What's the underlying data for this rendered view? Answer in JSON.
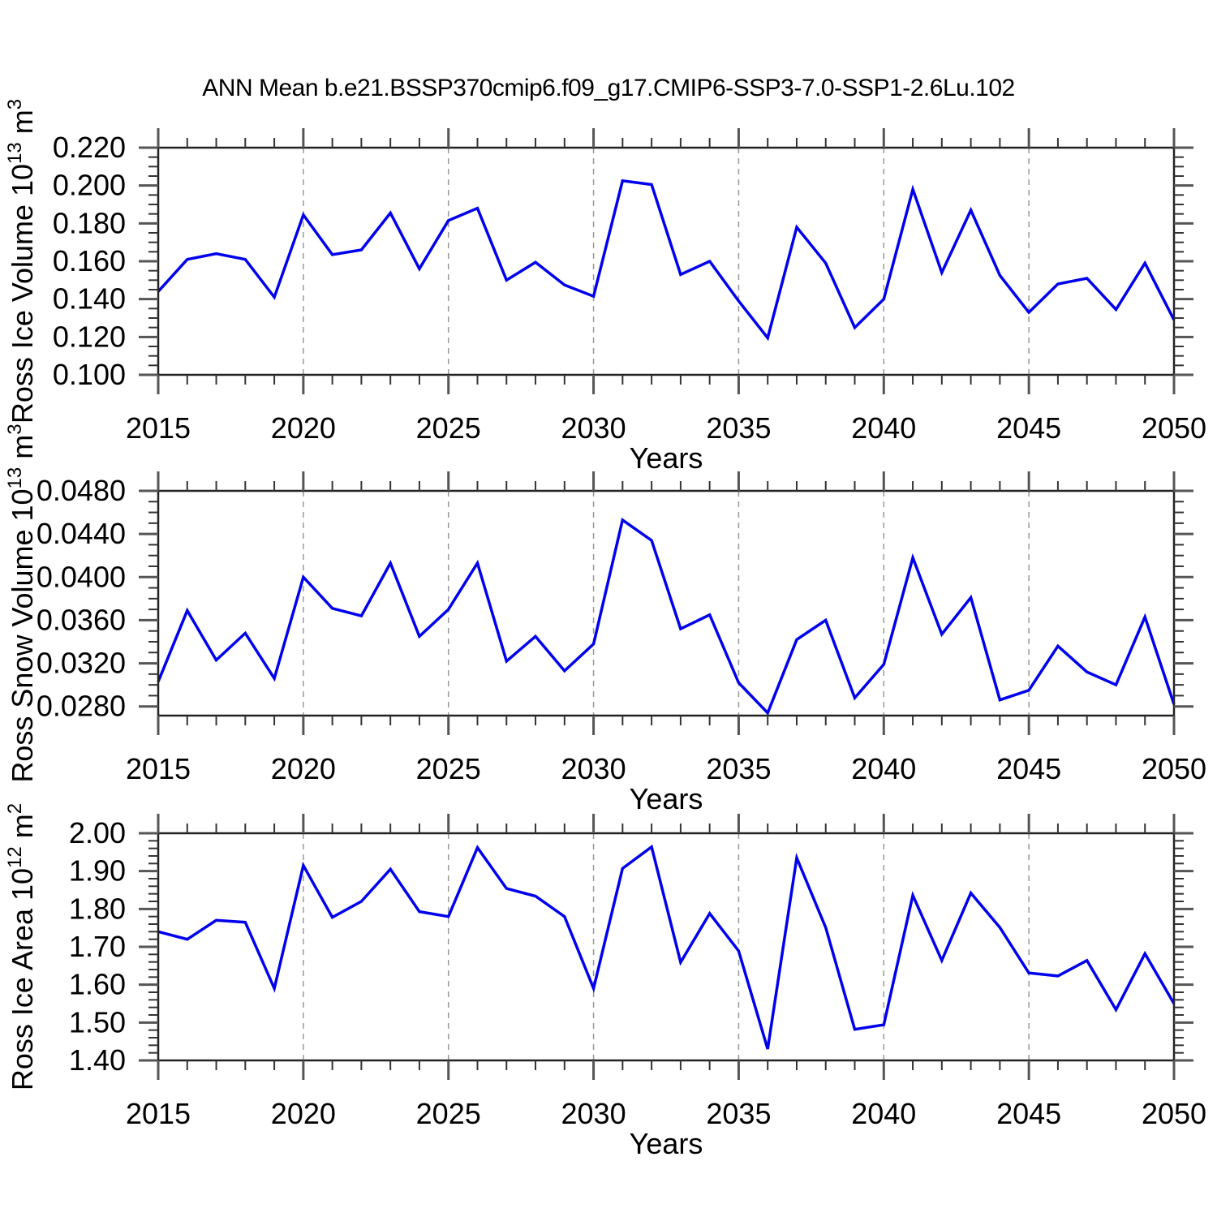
{
  "title": "ANN Mean b.e21.BSSP370cmip6.f09_g17.CMIP6-SSP3-7.0-SSP1-2.6Lu.102",
  "colors": {
    "line": "#0000EE",
    "grid": "#999999",
    "axis": "#222222",
    "major_tick": "#555555",
    "minor_tick": "#333333"
  },
  "chart_data": [
    {
      "type": "line",
      "name": "ross-ice-volume",
      "ylabel": {
        "main": "Ross Ice Volume 10",
        "exp": "13",
        "unit": " m",
        "unit_exp": "3"
      },
      "xlabel": "Years",
      "x_start": 2015,
      "x_end": 2050,
      "x_major_step": 5,
      "xtick_labels": [
        "2015",
        "2020",
        "2025",
        "2030",
        "2035",
        "2040",
        "2045",
        "2050"
      ],
      "grid_years": [
        2020,
        2025,
        2030,
        2035,
        2040,
        2045
      ],
      "ylim": [
        0.1,
        0.22
      ],
      "ymajor": [
        0.1,
        0.12,
        0.14,
        0.16,
        0.18,
        0.2,
        0.22
      ],
      "ytick_labels": [
        "0.100",
        "0.120",
        "0.140",
        "0.160",
        "0.180",
        "0.200",
        "0.220"
      ],
      "yminor_step": 0.005,
      "values": [
        0.144,
        0.161,
        0.164,
        0.161,
        0.141,
        0.1845,
        0.1635,
        0.166,
        0.1855,
        0.156,
        0.1815,
        0.188,
        0.15,
        0.1595,
        0.1475,
        0.1415,
        0.2025,
        0.2005,
        0.153,
        0.16,
        0.139,
        0.1195,
        0.178,
        0.159,
        0.125,
        0.14,
        0.198,
        0.154,
        0.187,
        0.1525,
        0.133,
        0.148,
        0.151,
        0.1345,
        0.159,
        0.129
      ]
    },
    {
      "type": "line",
      "name": "ross-snow-volume",
      "ylabel": {
        "main": "Ross Snow Volume 10",
        "exp": "13",
        "unit": " m",
        "unit_exp": "3"
      },
      "xlabel": "Years",
      "x_start": 2015,
      "x_end": 2050,
      "x_major_step": 5,
      "xtick_labels": [
        "2015",
        "2020",
        "2025",
        "2030",
        "2035",
        "2040",
        "2045",
        "2050"
      ],
      "grid_years": [
        2020,
        2025,
        2030,
        2035,
        2040,
        2045
      ],
      "ylim": [
        0.02715,
        0.048
      ],
      "ymajor": [
        0.028,
        0.032,
        0.036,
        0.04,
        0.044,
        0.048
      ],
      "ytick_labels": [
        "0.0280",
        "0.0320",
        "0.0360",
        "0.0400",
        "0.0440",
        "0.0480"
      ],
      "yminor_step": 0.001,
      "values": [
        0.0303,
        0.0369,
        0.0323,
        0.0348,
        0.0306,
        0.04,
        0.0371,
        0.0364,
        0.0413,
        0.0345,
        0.037,
        0.0413,
        0.0322,
        0.0345,
        0.0313,
        0.0338,
        0.0453,
        0.0434,
        0.0352,
        0.0365,
        0.0302,
        0.0274,
        0.0342,
        0.036,
        0.0288,
        0.0319,
        0.0418,
        0.0347,
        0.0381,
        0.0286,
        0.0295,
        0.0336,
        0.0312,
        0.03,
        0.0363,
        0.0282
      ]
    },
    {
      "type": "line",
      "name": "ross-ice-area",
      "ylabel": {
        "main": "Ross Ice Area 10",
        "exp": "12",
        "unit": " m",
        "unit_exp": "2"
      },
      "xlabel": "Years",
      "x_start": 2015,
      "x_end": 2050,
      "x_major_step": 5,
      "xtick_labels": [
        "2015",
        "2020",
        "2025",
        "2030",
        "2035",
        "2040",
        "2045",
        "2050"
      ],
      "grid_years": [
        2020,
        2025,
        2030,
        2035,
        2040,
        2045
      ],
      "ylim": [
        1.4,
        2.0
      ],
      "ymajor": [
        1.4,
        1.5,
        1.6,
        1.7,
        1.8,
        1.9,
        2.0
      ],
      "ytick_labels": [
        "1.40",
        "1.50",
        "1.60",
        "1.70",
        "1.80",
        "1.90",
        "2.00"
      ],
      "yminor_step": 0.02,
      "values": [
        1.74,
        1.72,
        1.77,
        1.765,
        1.59,
        1.915,
        1.778,
        1.82,
        1.905,
        1.793,
        1.78,
        1.962,
        1.854,
        1.834,
        1.78,
        1.59,
        1.907,
        1.964,
        1.659,
        1.788,
        1.689,
        1.43,
        1.935,
        1.751,
        1.482,
        1.494,
        1.836,
        1.664,
        1.842,
        1.751,
        1.631,
        1.623,
        1.664,
        1.534,
        1.682,
        1.55
      ]
    }
  ]
}
